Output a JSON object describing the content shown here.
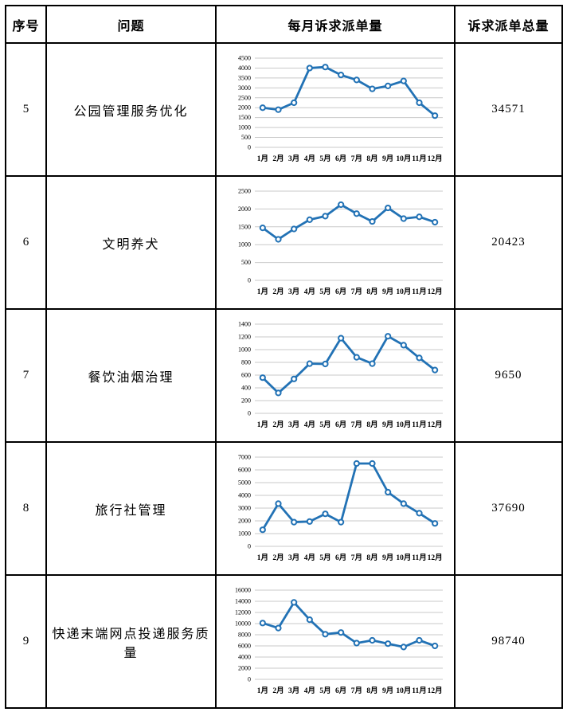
{
  "table": {
    "headers": [
      {
        "label": "序号"
      },
      {
        "label": "问题"
      },
      {
        "label": "每月诉求派单量"
      },
      {
        "label": "诉求派单总量"
      }
    ],
    "rows": [
      {
        "index": "5",
        "issue": "公园管理服务优化",
        "total": "34571"
      },
      {
        "index": "6",
        "issue": "文明养犬",
        "total": "20423"
      },
      {
        "index": "7",
        "issue": "餐饮油烟治理",
        "total": "9650"
      },
      {
        "index": "8",
        "issue": "旅行社管理",
        "total": "37690"
      },
      {
        "index": "9",
        "issue": "快递末端网点投递服务质量",
        "total": "98740"
      }
    ]
  },
  "chart_data": [
    {
      "type": "line",
      "title": "",
      "xlabel": "",
      "ylabel": "",
      "x": [
        "1月",
        "2月",
        "3月",
        "4月",
        "5月",
        "6月",
        "7月",
        "8月",
        "9月",
        "10月",
        "11月",
        "12月"
      ],
      "values": [
        2000,
        1900,
        2250,
        4000,
        4050,
        3650,
        3400,
        2950,
        3100,
        3350,
        2250,
        1600
      ],
      "ylim": [
        0,
        4500
      ],
      "ystep": 500,
      "grid": true,
      "legend": false
    },
    {
      "type": "line",
      "title": "",
      "xlabel": "",
      "ylabel": "",
      "x": [
        "1月",
        "2月",
        "3月",
        "4月",
        "5月",
        "6月",
        "7月",
        "8月",
        "9月",
        "10月",
        "11月",
        "12月"
      ],
      "values": [
        1470,
        1150,
        1440,
        1700,
        1800,
        2120,
        1870,
        1650,
        2030,
        1730,
        1780,
        1630
      ],
      "ylim": [
        0,
        2500
      ],
      "ystep": 500,
      "grid": true,
      "legend": false
    },
    {
      "type": "line",
      "title": "",
      "xlabel": "",
      "ylabel": "",
      "x": [
        "1月",
        "2月",
        "3月",
        "4月",
        "5月",
        "6月",
        "7月",
        "8月",
        "9月",
        "10月",
        "11月",
        "12月"
      ],
      "values": [
        560,
        320,
        540,
        780,
        775,
        1180,
        880,
        780,
        1210,
        1070,
        870,
        680
      ],
      "ylim": [
        0,
        1400
      ],
      "ystep": 200,
      "grid": true,
      "legend": false
    },
    {
      "type": "line",
      "title": "",
      "xlabel": "",
      "ylabel": "",
      "x": [
        "1月",
        "2月",
        "3月",
        "4月",
        "5月",
        "6月",
        "7月",
        "8月",
        "9月",
        "10月",
        "11月",
        "12月"
      ],
      "values": [
        1300,
        3350,
        1900,
        1950,
        2550,
        1900,
        6500,
        6500,
        4250,
        3350,
        2600,
        1800
      ],
      "ylim": [
        0,
        7000
      ],
      "ystep": 1000,
      "grid": true,
      "legend": false
    },
    {
      "type": "line",
      "title": "",
      "xlabel": "",
      "ylabel": "",
      "x": [
        "1月",
        "2月",
        "3月",
        "4月",
        "5月",
        "6月",
        "7月",
        "8月",
        "9月",
        "10月",
        "11月",
        "12月"
      ],
      "values": [
        10100,
        9200,
        13800,
        10700,
        8100,
        8400,
        6500,
        7000,
        6400,
        5800,
        7000,
        6000
      ],
      "ylim": [
        0,
        16000
      ],
      "ystep": 2000,
      "grid": true,
      "legend": false
    }
  ],
  "colors": {
    "line": "#2272B5",
    "marker_fill": "#ffffff",
    "grid": "#c9c9c9",
    "border": "#000000",
    "text": "#000000"
  }
}
